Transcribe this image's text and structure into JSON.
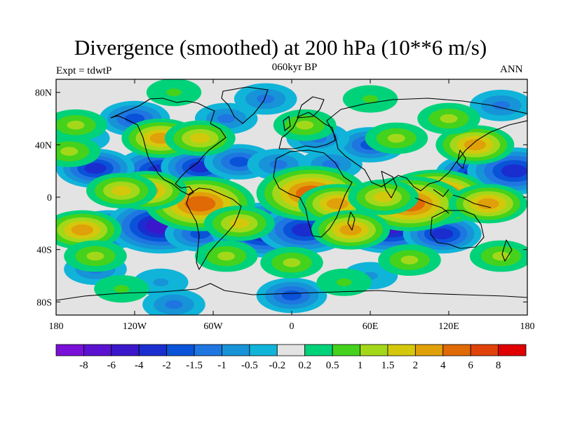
{
  "figure": {
    "title": "Divergence (smoothed) at 200 hPa (10**6 m/s)",
    "subtitle": "060kyr BP",
    "left_label": "Expt = tdwtP",
    "right_label": "ANN"
  },
  "chart_data": {
    "type": "heatmap",
    "title": "Divergence (smoothed) at 200 hPa (10**6 m/s)",
    "projection": "cylindrical equidistant",
    "xlim": [
      -180,
      180
    ],
    "ylim": [
      -90,
      90
    ],
    "x_ticks": [
      {
        "value": -180,
        "label": "180"
      },
      {
        "value": -120,
        "label": "120W"
      },
      {
        "value": -60,
        "label": "60W"
      },
      {
        "value": 0,
        "label": "0"
      },
      {
        "value": 60,
        "label": "60E"
      },
      {
        "value": 120,
        "label": "120E"
      },
      {
        "value": 180,
        "label": "180"
      }
    ],
    "y_ticks": [
      {
        "value": 80,
        "label": "80N"
      },
      {
        "value": 40,
        "label": "40N"
      },
      {
        "value": 0,
        "label": "0"
      },
      {
        "value": -40,
        "label": "40S"
      },
      {
        "value": -80,
        "label": "80S"
      }
    ],
    "colorbar": {
      "colors": [
        "#7a10d8",
        "#5a12d0",
        "#3b17cc",
        "#1a2ecf",
        "#0a52d8",
        "#1f76e0",
        "#1793d8",
        "#10b4d8",
        "#e3e3e3",
        "#00d27a",
        "#44d21c",
        "#a3d81a",
        "#d4c80c",
        "#e0a00a",
        "#e06a06",
        "#e0420a",
        "#e00000"
      ],
      "labels": [
        "-8",
        "-6",
        "-4",
        "-2",
        "-1.5",
        "-1",
        "-0.5",
        "-0.2",
        "0.2",
        "0.5",
        "1",
        "1.5",
        "2",
        "4",
        "6",
        "8"
      ]
    },
    "blobs": [
      {
        "lon": -100,
        "lat": 20,
        "v": -3
      },
      {
        "lon": -150,
        "lat": 22,
        "v": -2
      },
      {
        "lon": -70,
        "lat": 23,
        "v": -2
      },
      {
        "lon": -40,
        "lat": 27,
        "v": -1.5
      },
      {
        "lon": -10,
        "lat": 25,
        "v": -1
      },
      {
        "lon": 30,
        "lat": 25,
        "v": -1
      },
      {
        "lon": 140,
        "lat": 18,
        "v": -2
      },
      {
        "lon": 170,
        "lat": 20,
        "v": -3
      },
      {
        "lon": -140,
        "lat": -25,
        "v": -2
      },
      {
        "lon": -100,
        "lat": -22,
        "v": -4
      },
      {
        "lon": -70,
        "lat": -28,
        "v": -1.5
      },
      {
        "lon": -20,
        "lat": -25,
        "v": -4
      },
      {
        "lon": 10,
        "lat": -25,
        "v": -3
      },
      {
        "lon": 75,
        "lat": -22,
        "v": -4
      },
      {
        "lon": 115,
        "lat": -28,
        "v": -2
      },
      {
        "lon": -150,
        "lat": -55,
        "v": -1
      },
      {
        "lon": 60,
        "lat": -60,
        "v": -0.5
      },
      {
        "lon": -100,
        "lat": -65,
        "v": -0.5
      },
      {
        "lon": -120,
        "lat": 60,
        "v": -1.5
      },
      {
        "lon": -50,
        "lat": 60,
        "v": -1
      },
      {
        "lon": 60,
        "lat": 40,
        "v": -1.5
      },
      {
        "lon": 20,
        "lat": 45,
        "v": -1
      },
      {
        "lon": 160,
        "lat": 70,
        "v": -1
      },
      {
        "lon": -20,
        "lat": 75,
        "v": -1
      },
      {
        "lon": 0,
        "lat": -75,
        "v": -1.5
      },
      {
        "lon": -90,
        "lat": -82,
        "v": -1
      },
      {
        "lon": -160,
        "lat": 45,
        "v": -0.5
      },
      {
        "lon": -70,
        "lat": -5,
        "v": 4
      },
      {
        "lon": -110,
        "lat": 5,
        "v": 2
      },
      {
        "lon": -130,
        "lat": 5,
        "v": 1.5
      },
      {
        "lon": 15,
        "lat": 3,
        "v": 4
      },
      {
        "lon": 35,
        "lat": -5,
        "v": 2
      },
      {
        "lon": 110,
        "lat": 0,
        "v": 6
      },
      {
        "lon": 90,
        "lat": -5,
        "v": 4
      },
      {
        "lon": 150,
        "lat": -5,
        "v": 2
      },
      {
        "lon": 70,
        "lat": 0,
        "v": 1.5
      },
      {
        "lon": -160,
        "lat": -25,
        "v": 2
      },
      {
        "lon": -40,
        "lat": -20,
        "v": 1.5
      },
      {
        "lon": 45,
        "lat": -25,
        "v": 2
      },
      {
        "lon": -100,
        "lat": 45,
        "v": 2
      },
      {
        "lon": -165,
        "lat": 55,
        "v": 1
      },
      {
        "lon": -70,
        "lat": 45,
        "v": 1.5
      },
      {
        "lon": 140,
        "lat": 40,
        "v": 2
      },
      {
        "lon": 80,
        "lat": 45,
        "v": 1
      },
      {
        "lon": 10,
        "lat": 55,
        "v": 1
      },
      {
        "lon": 120,
        "lat": 60,
        "v": 1
      },
      {
        "lon": -150,
        "lat": -45,
        "v": 1
      },
      {
        "lon": -50,
        "lat": -45,
        "v": 1
      },
      {
        "lon": 0,
        "lat": -50,
        "v": 1
      },
      {
        "lon": 90,
        "lat": -48,
        "v": 1
      },
      {
        "lon": 160,
        "lat": -45,
        "v": 1
      },
      {
        "lon": 40,
        "lat": -65,
        "v": 0.5
      },
      {
        "lon": -130,
        "lat": -70,
        "v": 0.5
      },
      {
        "lon": -170,
        "lat": 35,
        "v": 1
      },
      {
        "lon": -90,
        "lat": 80,
        "v": 0.5
      },
      {
        "lon": 60,
        "lat": 75,
        "v": 0.5
      }
    ]
  }
}
